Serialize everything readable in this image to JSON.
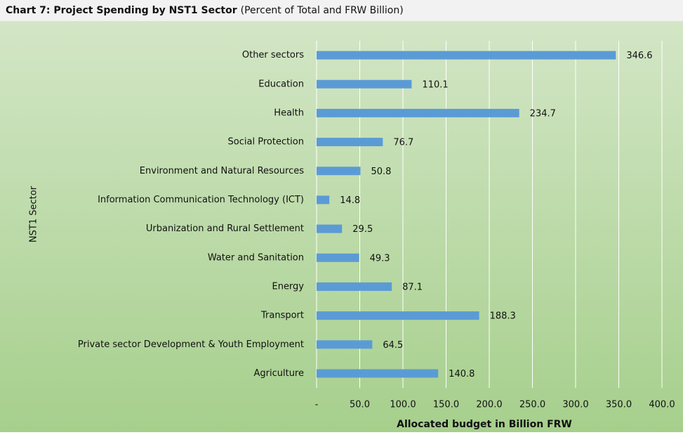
{
  "chart_data": {
    "type": "hbar",
    "title": "Chart 7: Project Spending by NST1 Sector",
    "subtitle": "(Percent of Total and FRW Billion)",
    "x_label": "Allocated budget in Billion FRW",
    "y_label": "NST1 Sector",
    "categories": [
      "Other sectors",
      "Education",
      "Health",
      "Social Protection",
      "Environment and Natural Resources",
      "Information Communication Technology (ICT)",
      "Urbanization and Rural Settlement",
      "Water and Sanitation",
      "Energy",
      "Transport",
      "Private sector Development & Youth Employment",
      "Agriculture"
    ],
    "values": [
      346.6,
      110.1,
      234.7,
      76.7,
      50.8,
      14.8,
      29.5,
      49.3,
      87.1,
      188.3,
      64.5,
      140.8
    ],
    "color": "#5b9bd5",
    "xlim": [
      0,
      400
    ],
    "xticks": [
      {
        "value": 0,
        "label": "-"
      },
      {
        "value": 50,
        "label": "50.0"
      },
      {
        "value": 100,
        "label": "100.0"
      },
      {
        "value": 150,
        "label": "150.0"
      },
      {
        "value": 200,
        "label": "200.0"
      },
      {
        "value": 250,
        "label": "250.0"
      },
      {
        "value": 300,
        "label": "300.0"
      },
      {
        "value": 350,
        "label": "350.0"
      },
      {
        "value": 400,
        "label": "400.0"
      }
    ],
    "grid": true
  }
}
